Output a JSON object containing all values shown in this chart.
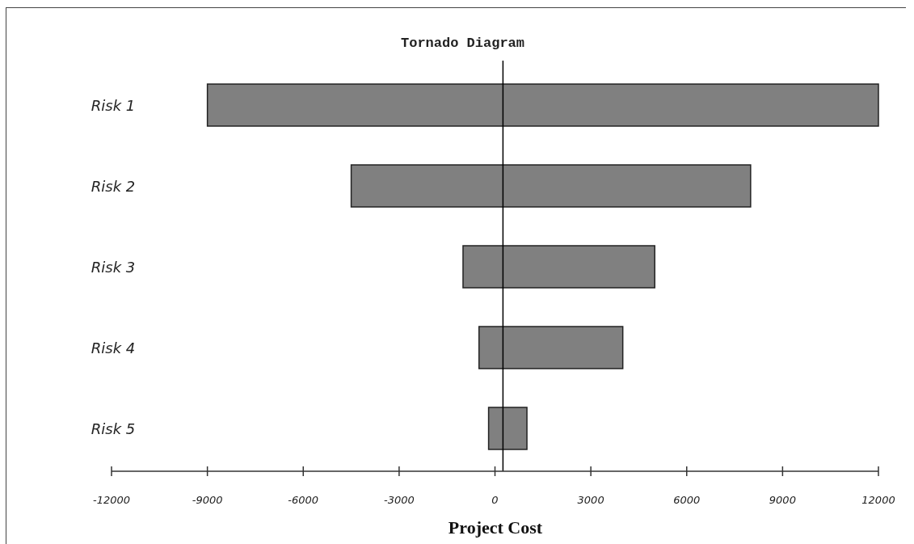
{
  "chart_data": {
    "type": "bar",
    "orientation": "horizontal",
    "title": "Tornado Diagram",
    "xlabel": "Project Cost",
    "categories": [
      "Risk 1",
      "Risk 2",
      "Risk 3",
      "Risk 4",
      "Risk 5"
    ],
    "base": [
      -9000,
      -4500,
      -1000,
      -500,
      -200
    ],
    "values": [
      21000,
      12500,
      6000,
      4500,
      1200
    ],
    "color": "#808080",
    "xlim": [
      -12000,
      12000
    ],
    "xticks": [
      -12000,
      -9000,
      -6000,
      -3000,
      0,
      3000,
      6000,
      9000,
      12000
    ],
    "ref_lines": [
      {
        "axis": "x",
        "value": 250,
        "color": "#000000"
      }
    ],
    "grid": false
  }
}
